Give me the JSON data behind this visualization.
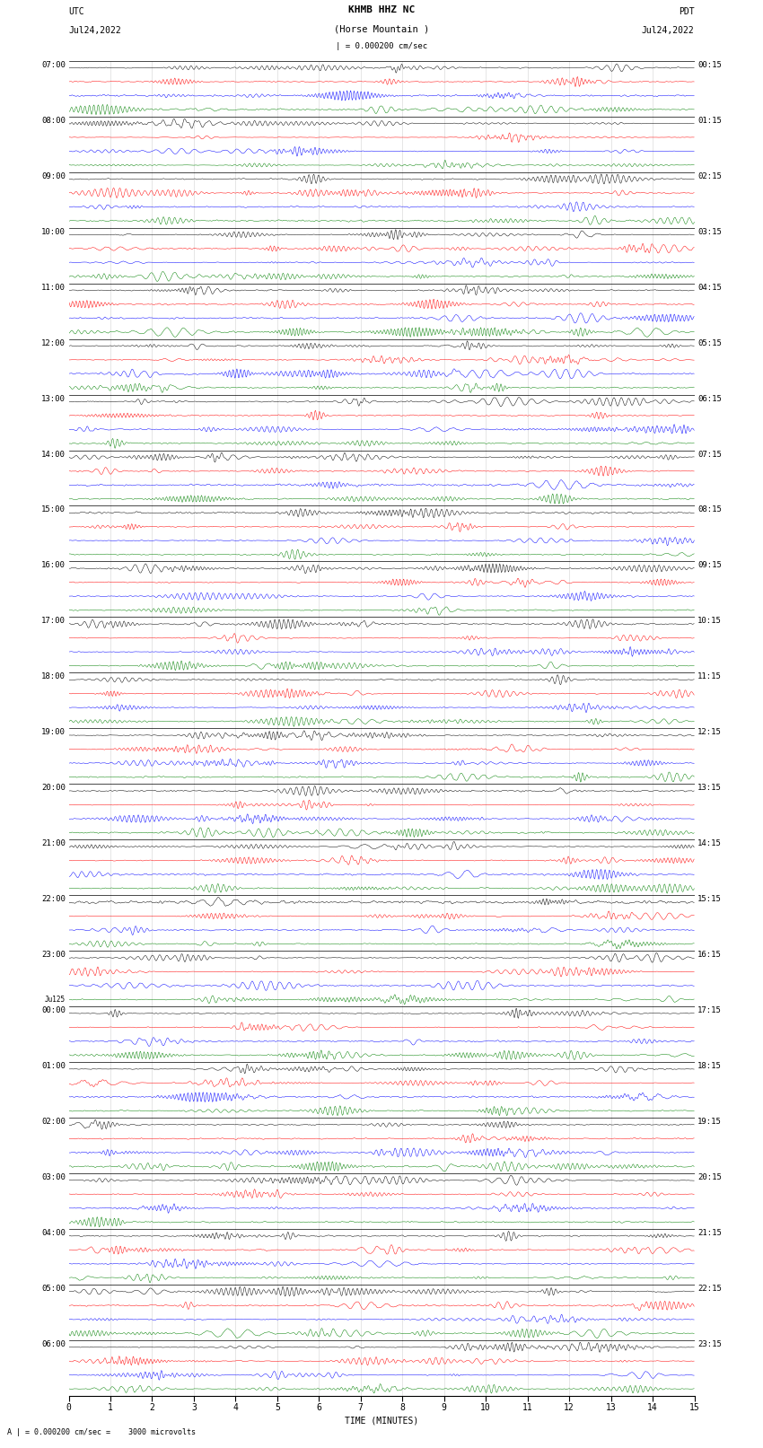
{
  "title_center_line1": "KHMB HHZ NC",
  "title_center_line2": "(Horse Mountain )",
  "title_left_line1": "UTC",
  "title_left_line2": "Jul24,2022",
  "title_right_line1": "PDT",
  "title_right_line2": "Jul24,2022",
  "scale_label": "| = 0.000200 cm/sec",
  "bottom_label": "A | = 0.000200 cm/sec =    3000 microvolts",
  "xlabel": "TIME (MINUTES)",
  "left_time_labels": [
    "07:00",
    "08:00",
    "09:00",
    "10:00",
    "11:00",
    "12:00",
    "13:00",
    "14:00",
    "15:00",
    "16:00",
    "17:00",
    "18:00",
    "19:00",
    "20:00",
    "21:00",
    "22:00",
    "23:00",
    "Ju125\n00:00",
    "01:00",
    "02:00",
    "03:00",
    "04:00",
    "05:00",
    "06:00"
  ],
  "right_time_labels": [
    "00:15",
    "01:15",
    "02:15",
    "03:15",
    "04:15",
    "05:15",
    "06:15",
    "07:15",
    "08:15",
    "09:15",
    "10:15",
    "11:15",
    "12:15",
    "13:15",
    "14:15",
    "15:15",
    "16:15",
    "17:15",
    "18:15",
    "19:15",
    "20:15",
    "21:15",
    "22:15",
    "23:15"
  ],
  "colors": [
    "black",
    "red",
    "blue",
    "green"
  ],
  "n_hours": 24,
  "traces_per_hour": 4,
  "n_pts": 1500,
  "background_color": "white",
  "line_width": 0.35,
  "trace_amp": 0.09
}
